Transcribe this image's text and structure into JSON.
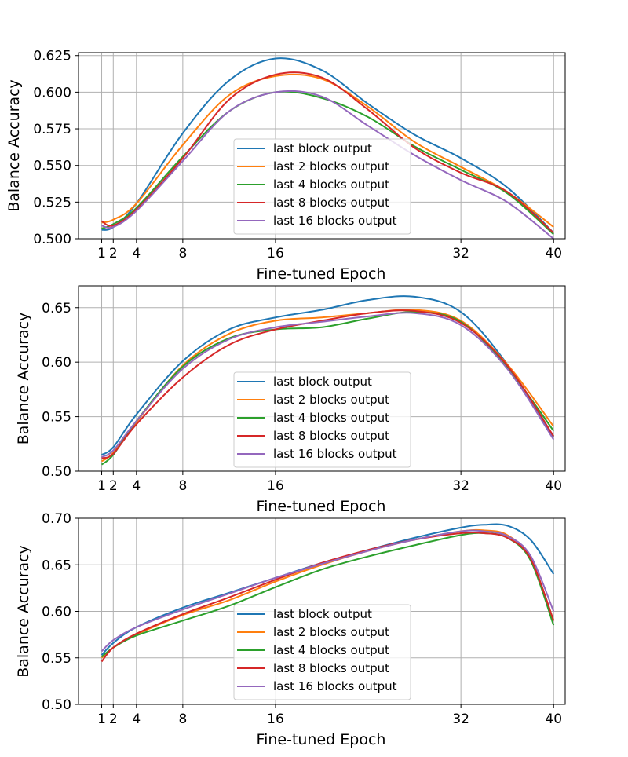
{
  "chart_data": [
    {
      "type": "line",
      "xlabel": "Fine-tuned Epoch",
      "ylabel": "Balance Accuracy",
      "xlim": [
        -1,
        41
      ],
      "ylim": [
        0.5,
        0.627
      ],
      "xticks": [
        1,
        2,
        4,
        8,
        16,
        32,
        40
      ],
      "xtick_labels": [
        "1",
        "2",
        "4",
        "8",
        "16",
        "32",
        "40"
      ],
      "yticks": [
        0.5,
        0.525,
        0.55,
        0.575,
        0.6,
        0.625
      ],
      "ytick_labels": [
        "0.500",
        "0.525",
        "0.550",
        "0.575",
        "0.600",
        "0.625"
      ],
      "grid": true,
      "legend_position": "lower-center",
      "series": [
        {
          "name": "last block output",
          "color": "#1f77b4",
          "x": [
            1,
            2,
            4,
            8,
            12,
            16,
            20,
            24,
            28,
            32,
            36,
            40
          ],
          "values": [
            0.506,
            0.508,
            0.524,
            0.572,
            0.608,
            0.623,
            0.615,
            0.592,
            0.571,
            0.555,
            0.535,
            0.504
          ]
        },
        {
          "name": "last 2 blocks output",
          "color": "#ff7f0e",
          "x": [
            1,
            2,
            4,
            8,
            12,
            16,
            20,
            24,
            28,
            32,
            36,
            40
          ],
          "values": [
            0.511,
            0.513,
            0.524,
            0.564,
            0.598,
            0.611,
            0.609,
            0.59,
            0.566,
            0.549,
            0.532,
            0.508
          ]
        },
        {
          "name": "last 4 blocks output",
          "color": "#2ca02c",
          "x": [
            1,
            2,
            4,
            8,
            12,
            16,
            20,
            24,
            28,
            32,
            36,
            40
          ],
          "values": [
            0.507,
            0.51,
            0.521,
            0.556,
            0.587,
            0.6,
            0.596,
            0.583,
            0.563,
            0.547,
            0.531,
            0.503
          ]
        },
        {
          "name": "last 8 blocks output",
          "color": "#d62728",
          "x": [
            1,
            2,
            4,
            8,
            12,
            16,
            20,
            24,
            28,
            32,
            36,
            40
          ],
          "values": [
            0.512,
            0.509,
            0.52,
            0.555,
            0.595,
            0.612,
            0.61,
            0.588,
            0.562,
            0.545,
            0.532,
            0.504
          ]
        },
        {
          "name": "last 16 blocks output",
          "color": "#9467bd",
          "x": [
            1,
            2,
            4,
            8,
            12,
            16,
            20,
            24,
            28,
            32,
            36,
            40
          ],
          "values": [
            0.509,
            0.508,
            0.519,
            0.553,
            0.587,
            0.6,
            0.597,
            0.577,
            0.557,
            0.54,
            0.525,
            0.5
          ]
        }
      ]
    },
    {
      "type": "line",
      "xlabel": "Fine-tuned Epoch",
      "ylabel": "Balance Accuracy",
      "xlim": [
        -1,
        41
      ],
      "ylim": [
        0.5,
        0.67
      ],
      "xticks": [
        1,
        2,
        4,
        8,
        16,
        32,
        40
      ],
      "xtick_labels": [
        "1",
        "2",
        "4",
        "8",
        "16",
        "32",
        "40"
      ],
      "yticks": [
        0.5,
        0.55,
        0.6,
        0.65
      ],
      "ytick_labels": [
        "0.50",
        "0.55",
        "0.60",
        "0.65"
      ],
      "grid": true,
      "legend_position": "lower-center",
      "series": [
        {
          "name": "last block output",
          "color": "#1f77b4",
          "x": [
            1,
            2,
            4,
            8,
            12,
            16,
            20,
            24,
            28,
            32,
            36,
            40
          ],
          "values": [
            0.515,
            0.522,
            0.552,
            0.601,
            0.63,
            0.641,
            0.648,
            0.657,
            0.66,
            0.646,
            0.598,
            0.531
          ]
        },
        {
          "name": "last 2 blocks output",
          "color": "#ff7f0e",
          "x": [
            1,
            2,
            4,
            8,
            12,
            16,
            20,
            24,
            28,
            32,
            36,
            40
          ],
          "values": [
            0.509,
            0.517,
            0.545,
            0.597,
            0.626,
            0.638,
            0.641,
            0.645,
            0.648,
            0.638,
            0.598,
            0.541
          ]
        },
        {
          "name": "last 4 blocks output",
          "color": "#2ca02c",
          "x": [
            1,
            2,
            4,
            8,
            12,
            16,
            20,
            24,
            28,
            32,
            36,
            40
          ],
          "values": [
            0.506,
            0.515,
            0.546,
            0.596,
            0.622,
            0.63,
            0.632,
            0.64,
            0.646,
            0.637,
            0.595,
            0.537
          ]
        },
        {
          "name": "last 8 blocks output",
          "color": "#d62728",
          "x": [
            1,
            2,
            4,
            8,
            12,
            16,
            20,
            24,
            28,
            32,
            36,
            40
          ],
          "values": [
            0.512,
            0.516,
            0.543,
            0.586,
            0.616,
            0.63,
            0.638,
            0.645,
            0.647,
            0.636,
            0.597,
            0.532
          ]
        },
        {
          "name": "last 16 blocks output",
          "color": "#9467bd",
          "x": [
            1,
            2,
            4,
            8,
            12,
            16,
            20,
            24,
            28,
            32,
            36,
            40
          ],
          "values": [
            0.513,
            0.519,
            0.546,
            0.594,
            0.621,
            0.632,
            0.637,
            0.642,
            0.645,
            0.634,
            0.594,
            0.529
          ]
        }
      ]
    },
    {
      "type": "line",
      "xlabel": "Fine-tuned Epoch",
      "ylabel": "Balance Accuracy",
      "xlim": [
        -1,
        41
      ],
      "ylim": [
        0.5,
        0.7
      ],
      "xticks": [
        1,
        2,
        4,
        8,
        16,
        32,
        40
      ],
      "xtick_labels": [
        "1",
        "2",
        "4",
        "8",
        "16",
        "32",
        "40"
      ],
      "yticks": [
        0.5,
        0.55,
        0.6,
        0.65,
        0.7
      ],
      "ytick_labels": [
        "0.50",
        "0.55",
        "0.60",
        "0.65",
        "0.70"
      ],
      "grid": true,
      "legend_position": "lower-center",
      "series": [
        {
          "name": "last block output",
          "color": "#1f77b4",
          "x": [
            1,
            2,
            4,
            8,
            12,
            16,
            20,
            24,
            28,
            32,
            34,
            36,
            38,
            40
          ],
          "values": [
            0.553,
            0.566,
            0.583,
            0.604,
            0.62,
            0.636,
            0.652,
            0.666,
            0.679,
            0.69,
            0.693,
            0.692,
            0.677,
            0.64
          ]
        },
        {
          "name": "last 2 blocks output",
          "color": "#ff7f0e",
          "x": [
            1,
            2,
            4,
            8,
            12,
            16,
            20,
            24,
            28,
            32,
            34,
            36,
            38,
            40
          ],
          "values": [
            0.55,
            0.561,
            0.575,
            0.596,
            0.612,
            0.632,
            0.65,
            0.665,
            0.677,
            0.686,
            0.687,
            0.682,
            0.657,
            0.59
          ]
        },
        {
          "name": "last 4 blocks output",
          "color": "#2ca02c",
          "x": [
            1,
            2,
            4,
            8,
            12,
            16,
            20,
            24,
            28,
            32,
            34,
            36,
            38,
            40
          ],
          "values": [
            0.551,
            0.561,
            0.574,
            0.59,
            0.606,
            0.626,
            0.645,
            0.659,
            0.671,
            0.682,
            0.684,
            0.679,
            0.655,
            0.585
          ]
        },
        {
          "name": "last 8 blocks output",
          "color": "#d62728",
          "x": [
            1,
            2,
            4,
            8,
            12,
            16,
            20,
            24,
            28,
            32,
            34,
            36,
            38,
            40
          ],
          "values": [
            0.546,
            0.561,
            0.576,
            0.597,
            0.615,
            0.634,
            0.652,
            0.666,
            0.677,
            0.684,
            0.684,
            0.679,
            0.657,
            0.59
          ]
        },
        {
          "name": "last 16 blocks output",
          "color": "#9467bd",
          "x": [
            1,
            2,
            4,
            8,
            12,
            16,
            20,
            24,
            28,
            32,
            34,
            36,
            38,
            40
          ],
          "values": [
            0.557,
            0.569,
            0.583,
            0.602,
            0.619,
            0.636,
            0.651,
            0.665,
            0.677,
            0.686,
            0.686,
            0.681,
            0.66,
            0.6
          ]
        }
      ]
    }
  ]
}
